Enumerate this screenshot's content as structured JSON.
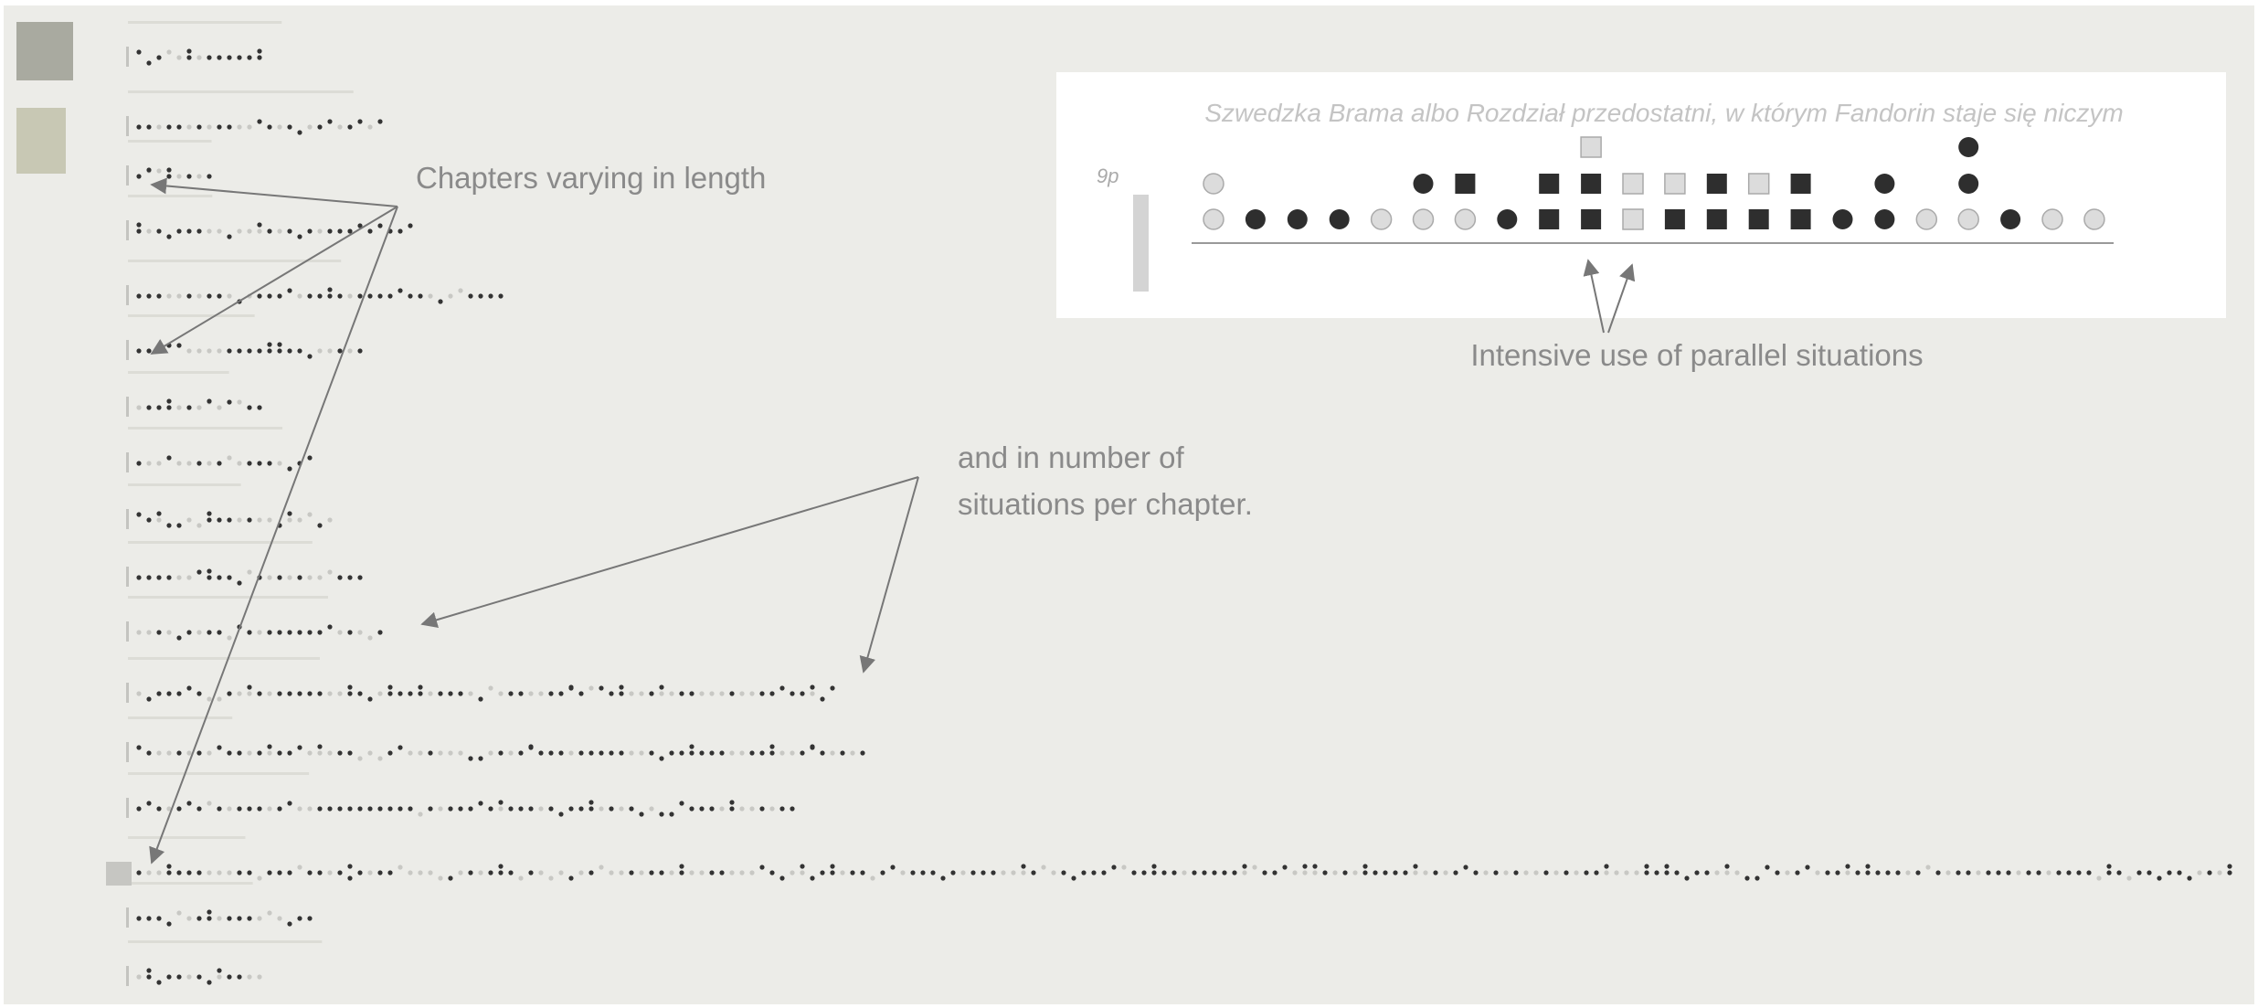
{
  "inset": {
    "title": "Szwedzka Brama albo Rozdział przedostatni, w którym Fandorin staje się niczym",
    "pages": "9p"
  },
  "annotations": {
    "length": "Chapters varying in length",
    "situations": [
      "and in number of",
      "situations per chapter."
    ],
    "parallel": "Intensive use of parallel situations"
  }
}
